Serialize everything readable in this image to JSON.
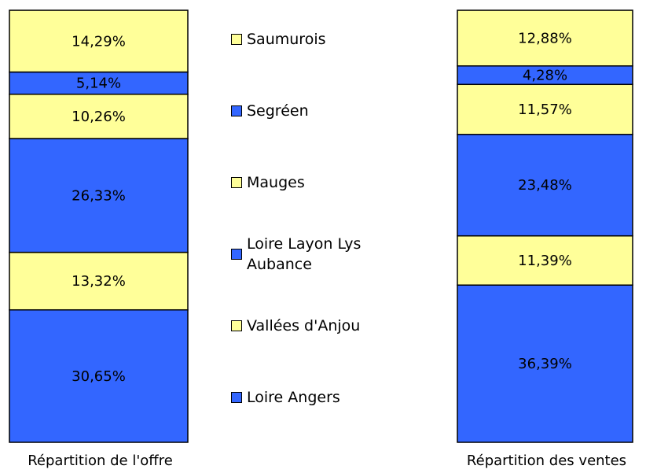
{
  "chart_data": {
    "type": "stacked_bar",
    "categories": [
      "Répartition de l'offre",
      "Répartition des ventes"
    ],
    "ylim": [
      0,
      100
    ],
    "series": [
      {
        "name": "Loire Angers",
        "color": "#3366ff",
        "values": [
          30.65,
          36.39
        ],
        "value_labels": [
          "30,65%",
          "36,39%"
        ]
      },
      {
        "name": "Vallées d'Anjou",
        "color": "#ffff99",
        "values": [
          13.32,
          11.39
        ],
        "value_labels": [
          "13,32%",
          "11,39%"
        ]
      },
      {
        "name": "Loire Layon Lys Aubance",
        "color": "#3366ff",
        "values": [
          26.33,
          23.48
        ],
        "value_labels": [
          "26,33%",
          "23,48%"
        ]
      },
      {
        "name": "Mauges",
        "color": "#ffff99",
        "values": [
          10.26,
          11.57
        ],
        "value_labels": [
          "10,26%",
          "11,57%"
        ]
      },
      {
        "name": "Segréen",
        "color": "#3366ff",
        "values": [
          5.14,
          4.28
        ],
        "value_labels": [
          "5,14%",
          "4,28%"
        ]
      },
      {
        "name": "Saumurois",
        "color": "#ffff99",
        "values": [
          14.29,
          12.88
        ],
        "value_labels": [
          "14,29%",
          "12,88%"
        ]
      }
    ]
  }
}
